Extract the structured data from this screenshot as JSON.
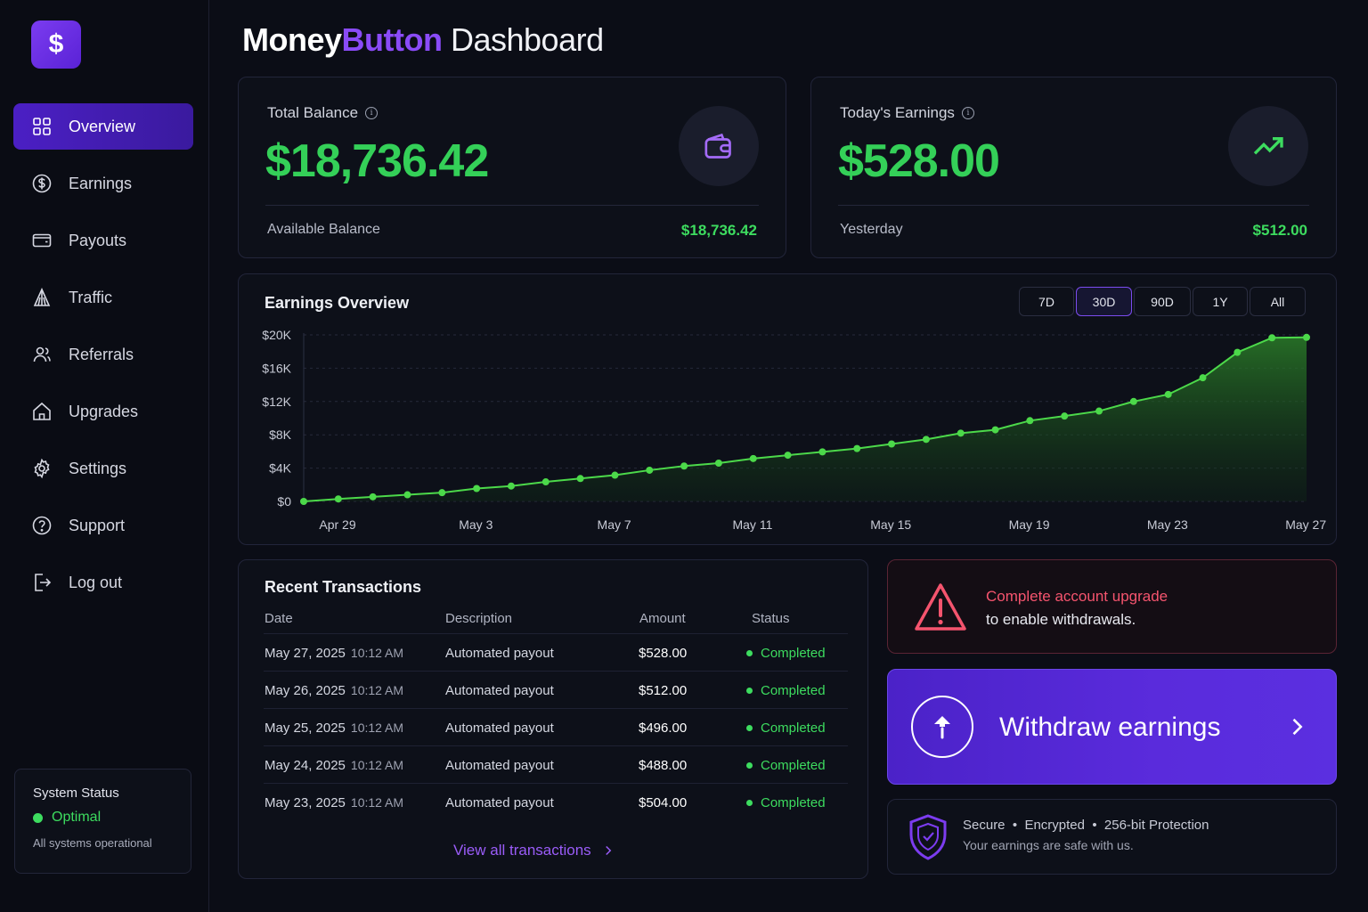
{
  "app": {
    "logo_symbol": "$",
    "title_part1": "Money",
    "title_part2": "Button",
    "title_part3": "Dashboard"
  },
  "sidebar": {
    "items": [
      {
        "label": "Overview",
        "icon": "grid-icon",
        "active": true
      },
      {
        "label": "Earnings",
        "icon": "dollar-circle-icon"
      },
      {
        "label": "Payouts",
        "icon": "wallet-icon"
      },
      {
        "label": "Traffic",
        "icon": "traffic-icon"
      },
      {
        "label": "Referrals",
        "icon": "users-icon"
      },
      {
        "label": "Upgrades",
        "icon": "home-icon"
      },
      {
        "label": "Settings",
        "icon": "gear-icon"
      },
      {
        "label": "Support",
        "icon": "help-icon"
      },
      {
        "label": "Log out",
        "icon": "logout-icon"
      }
    ],
    "status": {
      "title": "System Status",
      "value": "Optimal",
      "sub": "All systems operational"
    }
  },
  "balance": {
    "label": "Total Balance",
    "value": "$18,736.42",
    "foot_label": "Available Balance",
    "foot_value": "$18,736.42"
  },
  "today": {
    "label": "Today's Earnings",
    "value": "$528.00",
    "foot_label": "Yesterday",
    "foot_value": "$512.00"
  },
  "chart": {
    "title": "Earnings Overview",
    "ranges": [
      "7D",
      "30D",
      "90D",
      "1Y",
      "All"
    ],
    "active_range": "30D"
  },
  "chart_data": {
    "type": "area",
    "title": "Earnings Overview",
    "x_tick_labels": [
      "Apr 29",
      "May 3",
      "May 7",
      "May 11",
      "May 15",
      "May 19",
      "May 23",
      "May 27"
    ],
    "y_tick_labels": [
      "$20K",
      "$16K",
      "$12K",
      "$8K",
      "$4K",
      "$0"
    ],
    "ylim": [
      0,
      20000
    ],
    "x": [
      "Apr 29",
      "Apr 30",
      "May 1",
      "May 2",
      "May 3",
      "May 4",
      "May 5",
      "May 6",
      "May 7",
      "May 8",
      "May 9",
      "May 10",
      "May 11",
      "May 12",
      "May 13",
      "May 14",
      "May 15",
      "May 16",
      "May 17",
      "May 18",
      "May 19",
      "May 20",
      "May 21",
      "May 22",
      "May 23",
      "May 24",
      "May 25",
      "May 26",
      "May 27",
      "May 28"
    ],
    "values": [
      0,
      300,
      550,
      800,
      1050,
      1550,
      1850,
      2350,
      2750,
      3150,
      3750,
      4250,
      4600,
      5150,
      5550,
      5950,
      6350,
      6900,
      7450,
      8200,
      8600,
      9700,
      10250,
      10850,
      12000,
      12850,
      14850,
      17900,
      19650,
      19700
    ],
    "color": "#4cd94a",
    "grid": true
  },
  "transactions": {
    "title": "Recent Transactions",
    "columns": [
      "Date",
      "Description",
      "Amount",
      "Status"
    ],
    "rows": [
      {
        "date": "May 27, 2025",
        "time": "10:12 AM",
        "desc": "Automated payout",
        "amount": "$528.00",
        "status": "Completed"
      },
      {
        "date": "May 26, 2025",
        "time": "10:12 AM",
        "desc": "Automated payout",
        "amount": "$512.00",
        "status": "Completed"
      },
      {
        "date": "May 25, 2025",
        "time": "10:12 AM",
        "desc": "Automated payout",
        "amount": "$496.00",
        "status": "Completed"
      },
      {
        "date": "May 24, 2025",
        "time": "10:12 AM",
        "desc": "Automated payout",
        "amount": "$488.00",
        "status": "Completed"
      },
      {
        "date": "May 23, 2025",
        "time": "10:12 AM",
        "desc": "Automated payout",
        "amount": "$504.00",
        "status": "Completed"
      }
    ],
    "view_all": "View all transactions"
  },
  "alert": {
    "title": "Complete account upgrade",
    "sub": "to enable withdrawals."
  },
  "withdraw": {
    "label": "Withdraw earnings"
  },
  "security": {
    "line": "Secure  •  Encrypted  •  256-bit Protection",
    "sub": "Your earnings are safe with us."
  },
  "colors": {
    "accent": "#7c4cf0",
    "positive": "#34d058",
    "alert": "#f5546e",
    "background": "#0b0d16"
  }
}
